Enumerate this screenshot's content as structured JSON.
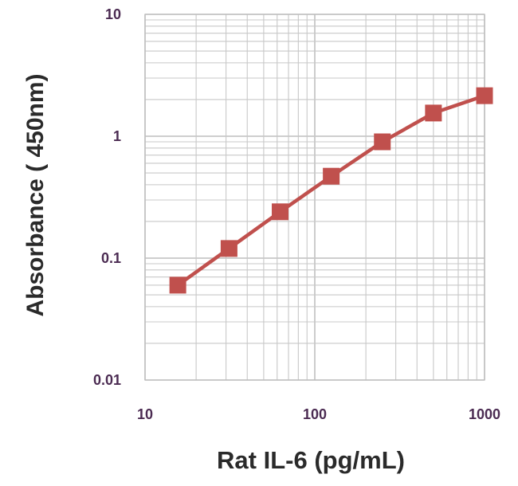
{
  "chart_data": {
    "type": "line",
    "title": "",
    "xlabel": "Rat IL-6 (pg/mL)",
    "ylabel": "Absorbance ( 450nm)",
    "xscale": "log",
    "yscale": "log",
    "xlim": [
      10,
      1000
    ],
    "ylim": [
      0.01,
      10
    ],
    "x_tick_labels": [
      "10",
      "100",
      "1000"
    ],
    "y_tick_labels": [
      "0.01",
      "0.1",
      "1",
      "10"
    ],
    "grid": true,
    "legend": "none",
    "series": [
      {
        "color": "#c0504d",
        "marker": "square",
        "x": [
          15.6,
          31.25,
          62.5,
          125,
          250,
          500,
          1000
        ],
        "y": [
          0.06,
          0.12,
          0.24,
          0.47,
          0.9,
          1.55,
          2.15
        ]
      }
    ]
  },
  "colors": {
    "grid": "#c8c8c8",
    "series": "#c0504d",
    "tick_text": "#4b2b52",
    "axis_text": "#2a2a2a"
  }
}
